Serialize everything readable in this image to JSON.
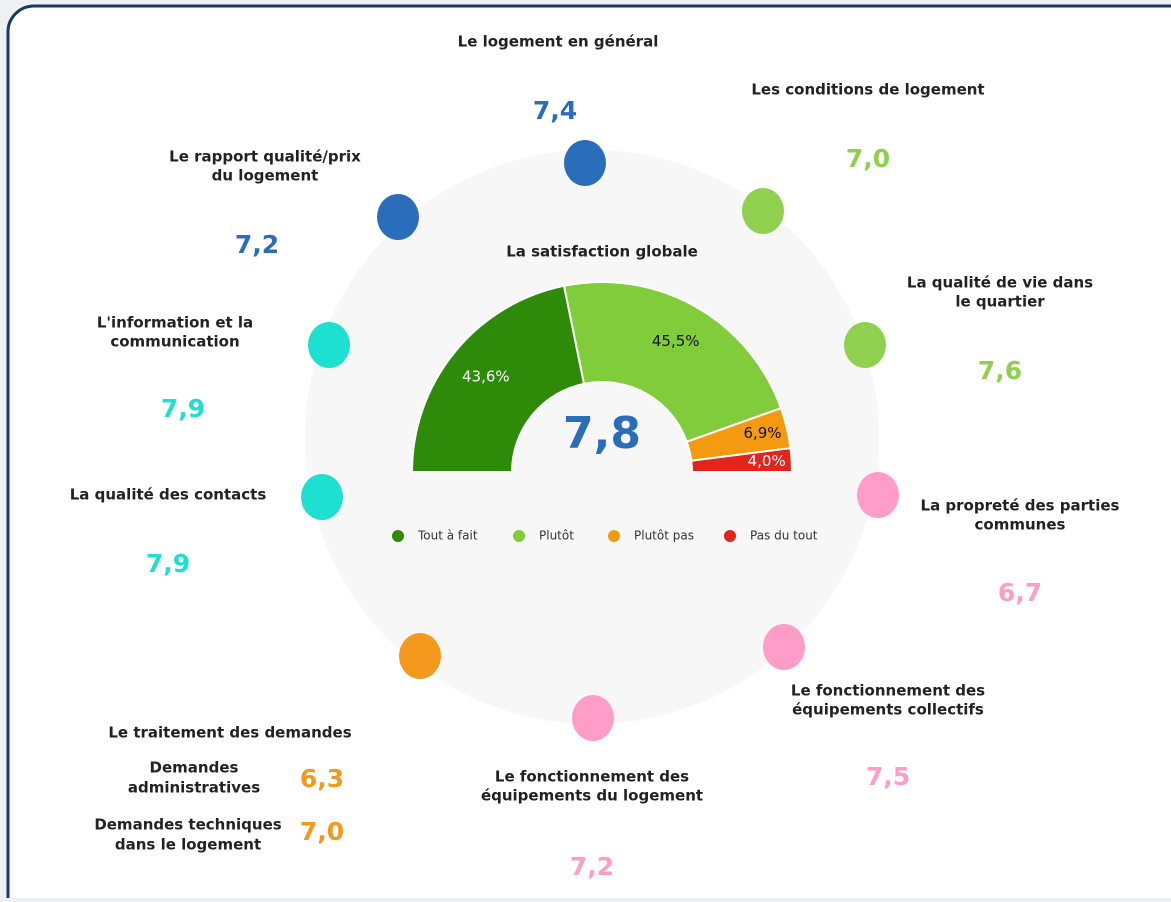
{
  "chart_data": {
    "type": "semi-donut",
    "title": "La satisfaction globale",
    "center_label": "7,8",
    "categories": [
      "Tout à fait",
      "Plutôt",
      "Plutôt pas",
      "Pas du tout"
    ],
    "values": [
      43.6,
      45.5,
      6.9,
      4.0
    ],
    "value_labels": [
      "43,6%",
      "45,5%",
      "6,9%",
      "4,0%"
    ],
    "colors": [
      "#2e8b0a",
      "#80cc3b",
      "#f39a10",
      "#e2241b"
    ],
    "label_colors": [
      "#ffffff",
      "#111111",
      "#111111",
      "#ffffff"
    ],
    "legend": "bottom"
  },
  "items": [
    {
      "label_lines": [
        "Le logement en général"
      ],
      "score": "7,4",
      "color": "#2a6ebb"
    },
    {
      "label_lines": [
        "Les conditions de logement"
      ],
      "score": "7,0",
      "color": "#8fd14f"
    },
    {
      "label_lines": [
        "La qualité de vie dans",
        "le quartier"
      ],
      "score": "7,6",
      "color": "#8fd14f"
    },
    {
      "label_lines": [
        "La propreté des parties",
        "communes"
      ],
      "score": "6,7",
      "color": "#ff9cc8"
    },
    {
      "label_lines": [
        "Le fonctionnement des",
        "équipements collectifs"
      ],
      "score": "7,5",
      "color": "#ff9cc8"
    },
    {
      "label_lines": [
        "Le fonctionnement des",
        "équipements du logement"
      ],
      "score": "7,2",
      "color": "#ff9cc8"
    },
    {
      "label_lines": [
        "Le traitement des demandes"
      ],
      "color": "#f39a1e",
      "sub_items": [
        {
          "label_lines": [
            "Demandes",
            "administratives"
          ],
          "score": "6,3"
        },
        {
          "label_lines": [
            "Demandes techniques",
            "dans le logement"
          ],
          "score": "7,0"
        }
      ]
    },
    {
      "label_lines": [
        "La qualité des contacts"
      ],
      "score": "7,9",
      "color": "#1de0d0"
    },
    {
      "label_lines": [
        "L'information et la",
        "communication"
      ],
      "score": "7,9",
      "color": "#1de0d0"
    },
    {
      "label_lines": [
        "Le rapport qualité/prix",
        "du logement"
      ],
      "score": "7,2",
      "color": "#2a6ebb"
    }
  ]
}
